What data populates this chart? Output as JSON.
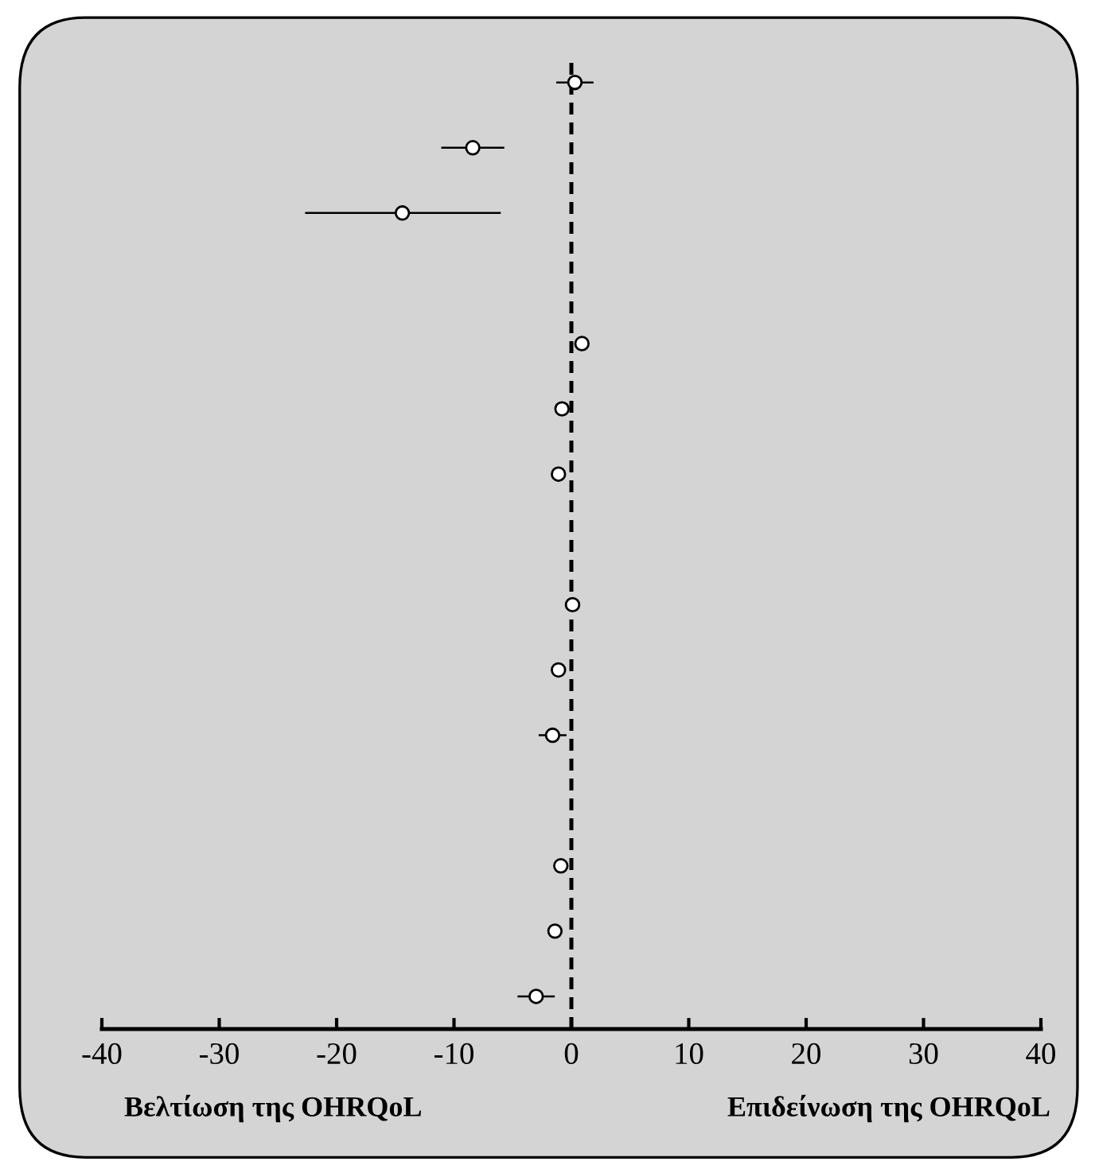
{
  "chart_data": {
    "type": "scatter",
    "orientation": "horizontal",
    "categories": [
      null,
      null,
      null,
      null,
      null,
      null,
      null,
      null,
      null,
      null,
      null,
      null,
      null,
      null,
      null
    ],
    "series": [
      {
        "color": "#000000",
        "values": [
          0.3,
          -8.4,
          -14.4,
          null,
          0.9,
          -0.8,
          -1.1,
          null,
          0.1,
          -1.1,
          -1.6,
          null,
          -0.9,
          -1.4,
          -3.0
        ],
        "errors": [
          [
            -1.2,
            1.8
          ],
          [
            -11.0,
            -5.8
          ],
          [
            -22.6,
            -6.1
          ],
          null,
          null,
          null,
          null,
          null,
          null,
          null,
          [
            -2.7,
            -0.5
          ],
          null,
          null,
          null,
          [
            -4.5,
            -1.5
          ]
        ]
      }
    ],
    "xlim": [
      -40,
      40
    ],
    "xticks": [
      -40,
      -30,
      -20,
      -10,
      0,
      10,
      20,
      30,
      40
    ],
    "tick_labels": "x",
    "marker": "circle",
    "ref_lines": [
      {
        "axis": "x",
        "value": 0,
        "line_style": "dashed",
        "color": "#000000"
      }
    ],
    "annotations": [
      "Βελτίωση της OHRQoL",
      "Επιδείνωση της OHRQoL"
    ]
  }
}
